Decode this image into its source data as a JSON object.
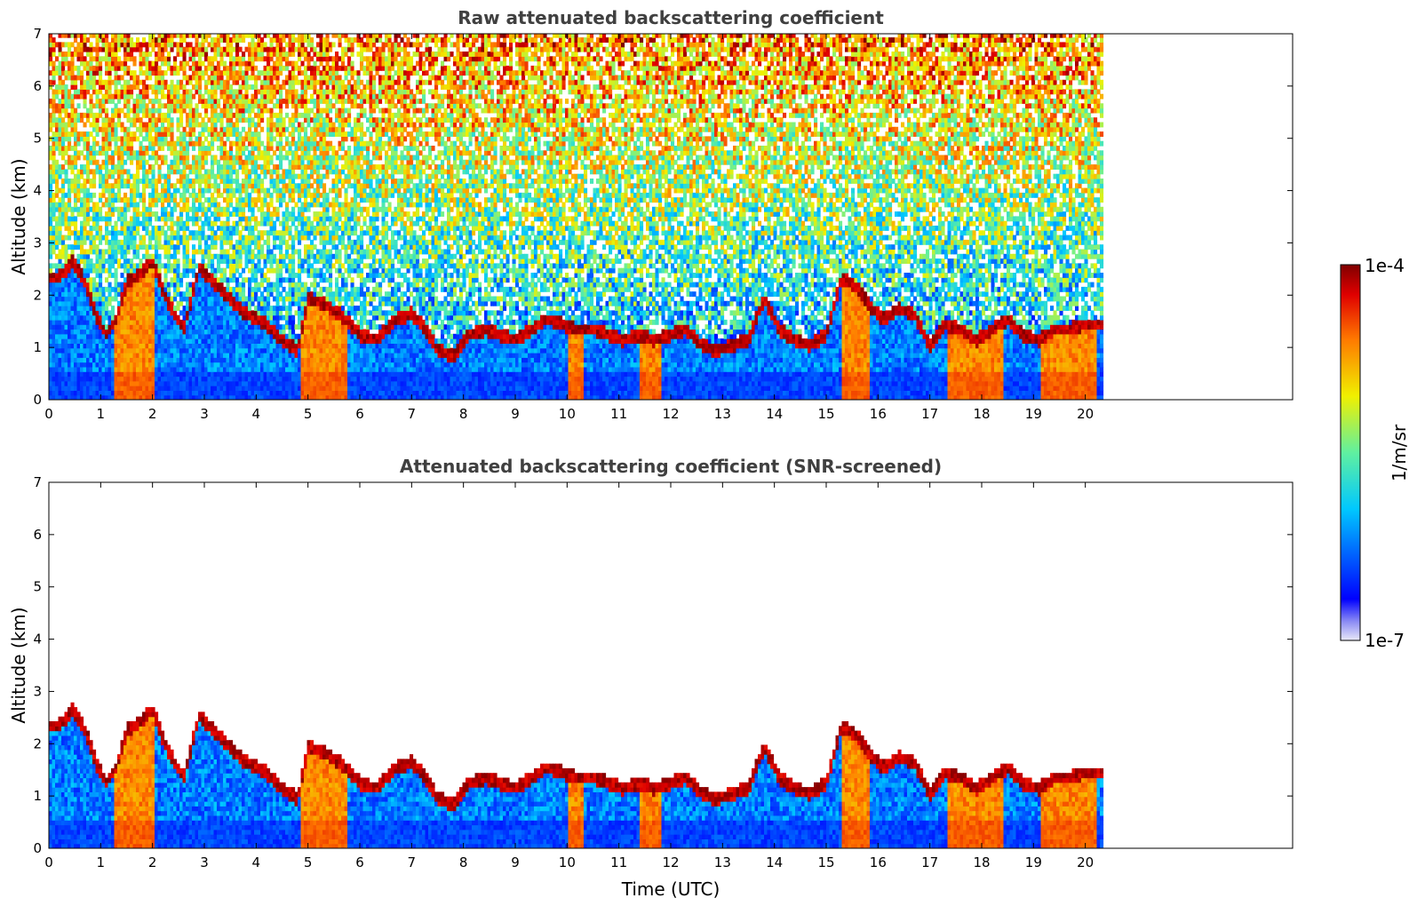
{
  "chart_data": [
    {
      "type": "heatmap",
      "title": "Raw attenuated backscattering coefficient",
      "xlabel": "",
      "ylabel": "Altitude (km)",
      "xlim": [
        0,
        24
      ],
      "ylim": [
        0,
        7
      ],
      "x_ticks": [
        "0",
        "1",
        "2",
        "3",
        "4",
        "5",
        "6",
        "7",
        "8",
        "9",
        "10",
        "11",
        "12",
        "13",
        "14",
        "15",
        "16",
        "17",
        "18",
        "19",
        "20"
      ],
      "y_ticks": [
        "0",
        "1",
        "2",
        "3",
        "4",
        "5",
        "6",
        "7"
      ],
      "data_end_time": 20.3,
      "screened": false,
      "layer_top": [
        [
          0,
          2.3
        ],
        [
          0.2,
          2.3
        ],
        [
          0.45,
          2.6
        ],
        [
          0.7,
          2.2
        ],
        [
          0.9,
          1.6
        ],
        [
          1.1,
          1.2
        ],
        [
          1.3,
          1.5
        ],
        [
          1.5,
          2.2
        ],
        [
          1.8,
          2.4
        ],
        [
          2.0,
          2.6
        ],
        [
          2.3,
          1.8
        ],
        [
          2.6,
          1.3
        ],
        [
          2.9,
          2.5
        ],
        [
          3.2,
          2.2
        ],
        [
          3.5,
          1.9
        ],
        [
          3.8,
          1.6
        ],
        [
          4.2,
          1.4
        ],
        [
          4.5,
          1.1
        ],
        [
          4.8,
          0.9
        ],
        [
          5.0,
          1.9
        ],
        [
          5.3,
          1.8
        ],
        [
          5.6,
          1.6
        ],
        [
          6.0,
          1.2
        ],
        [
          6.3,
          1.1
        ],
        [
          6.7,
          1.5
        ],
        [
          7.0,
          1.6
        ],
        [
          7.2,
          1.4
        ],
        [
          7.5,
          0.9
        ],
        [
          7.8,
          0.8
        ],
        [
          8.1,
          1.2
        ],
        [
          8.4,
          1.3
        ],
        [
          8.7,
          1.2
        ],
        [
          9.0,
          1.1
        ],
        [
          9.3,
          1.3
        ],
        [
          9.6,
          1.5
        ],
        [
          9.9,
          1.4
        ],
        [
          10.2,
          1.3
        ],
        [
          10.5,
          1.3
        ],
        [
          10.8,
          1.2
        ],
        [
          11.1,
          1.1
        ],
        [
          11.4,
          1.2
        ],
        [
          11.7,
          1.1
        ],
        [
          12.0,
          1.2
        ],
        [
          12.3,
          1.3
        ],
        [
          12.6,
          1.0
        ],
        [
          12.9,
          0.9
        ],
        [
          13.2,
          1.0
        ],
        [
          13.5,
          1.1
        ],
        [
          13.8,
          1.9
        ],
        [
          14.1,
          1.3
        ],
        [
          14.4,
          1.1
        ],
        [
          14.7,
          1.0
        ],
        [
          15.0,
          1.2
        ],
        [
          15.3,
          2.3
        ],
        [
          15.6,
          2.1
        ],
        [
          15.9,
          1.7
        ],
        [
          16.1,
          1.5
        ],
        [
          16.4,
          1.7
        ],
        [
          16.7,
          1.6
        ],
        [
          17.0,
          1.0
        ],
        [
          17.3,
          1.4
        ],
        [
          17.6,
          1.3
        ],
        [
          17.9,
          1.1
        ],
        [
          18.2,
          1.3
        ],
        [
          18.5,
          1.5
        ],
        [
          18.8,
          1.2
        ],
        [
          19.1,
          1.1
        ],
        [
          19.4,
          1.3
        ],
        [
          19.7,
          1.3
        ],
        [
          20.0,
          1.4
        ],
        [
          20.3,
          1.4
        ]
      ],
      "colorbar": {
        "min_label": "1e-7",
        "max_label": "1e-4",
        "label": "1/m/sr",
        "scale": "log",
        "colormap": "jet"
      }
    },
    {
      "type": "heatmap",
      "title": "Attenuated backscattering coefficient (SNR-screened)",
      "xlabel": "Time (UTC)",
      "ylabel": "Altitude (km)",
      "xlim": [
        0,
        24
      ],
      "ylim": [
        0,
        7
      ],
      "x_ticks": [
        "0",
        "1",
        "2",
        "3",
        "4",
        "5",
        "6",
        "7",
        "8",
        "9",
        "10",
        "11",
        "12",
        "13",
        "14",
        "15",
        "16",
        "17",
        "18",
        "19",
        "20"
      ],
      "y_ticks": [
        "0",
        "1",
        "2",
        "3",
        "4",
        "5",
        "6",
        "7"
      ],
      "data_end_time": 20.3,
      "screened": true
    }
  ]
}
